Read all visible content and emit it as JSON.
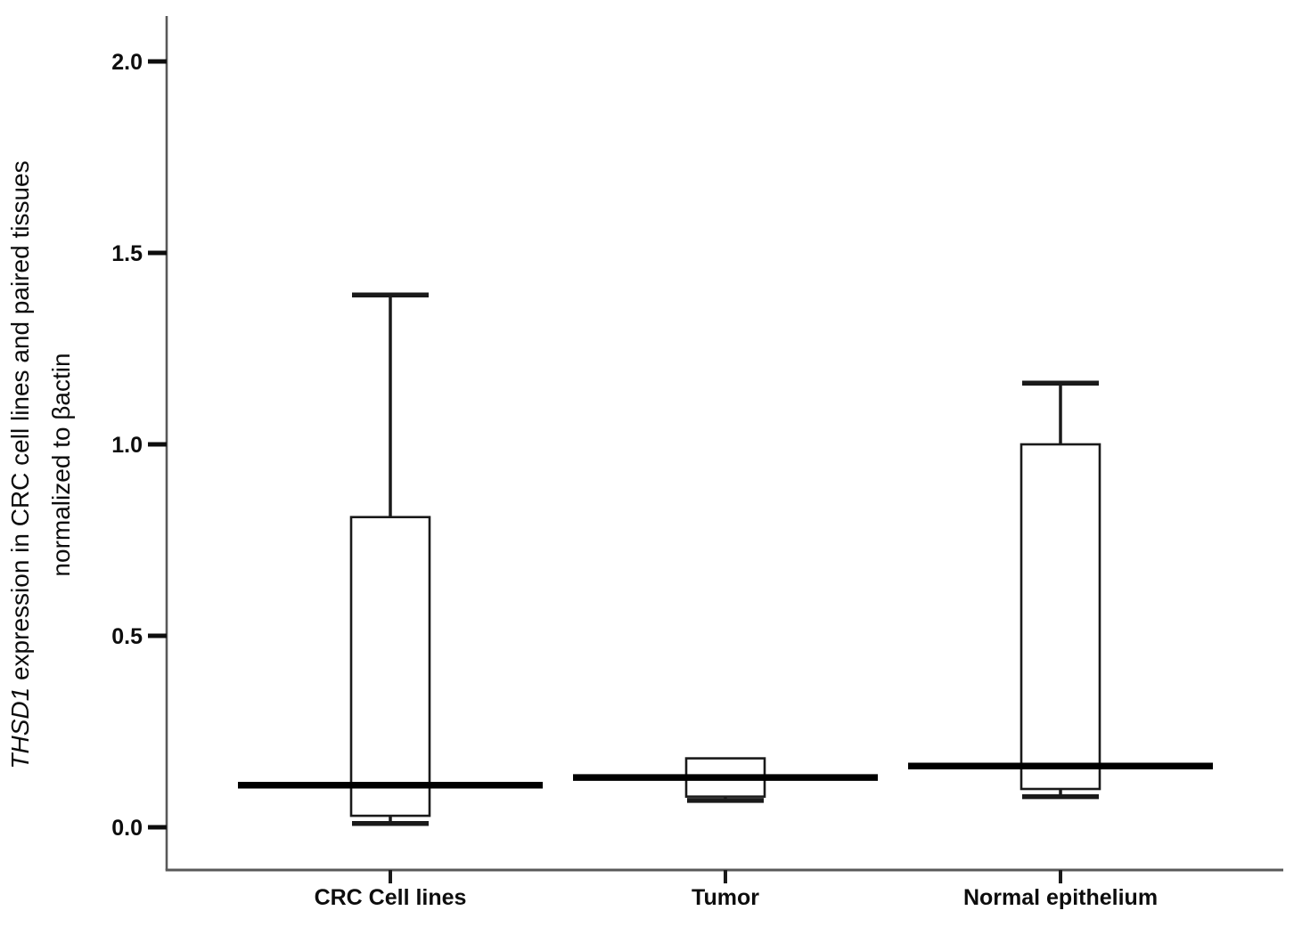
{
  "figure": {
    "kind": "boxplot-figure",
    "background": "#ffffff"
  },
  "chart_data": {
    "type": "box",
    "ylabel_line1_italic": "THSD1",
    "ylabel_line1_rest": " expression in  CRC cell lines and paired tissues",
    "ylabel_line2": "normalized to βactin",
    "categories": [
      "CRC Cell lines",
      "Tumor",
      "Normal epithelium"
    ],
    "yticks": [
      "0.0",
      "0.5",
      "1.0",
      "1.5",
      "2.0"
    ],
    "ylim": [
      -0.11,
      2.12
    ],
    "grid": false,
    "legend": null,
    "boxes": [
      {
        "category": "CRC Cell lines",
        "whisker_low": 0.01,
        "q1": 0.03,
        "median": 0.11,
        "q3": 0.81,
        "whisker_high": 1.39
      },
      {
        "category": "Tumor",
        "whisker_low": 0.07,
        "q1": 0.08,
        "median": 0.13,
        "q3": 0.18,
        "whisker_high": null
      },
      {
        "category": "Normal epithelium",
        "whisker_low": 0.08,
        "q1": 0.1,
        "median": 0.16,
        "q3": 1.0,
        "whisker_high": 1.16
      }
    ],
    "colors": {
      "background": "#ffffff",
      "axis": "#595959",
      "line": "#1a1a1a",
      "median": "#000000",
      "text": "#0d0d0d"
    }
  }
}
